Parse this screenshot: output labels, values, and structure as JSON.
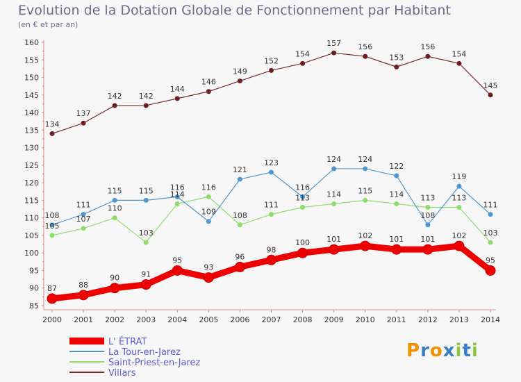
{
  "title": "Evolution de la Dotation Globale de Fonctionnement par Habitant",
  "subtitle": "(en € et par an)",
  "brand": {
    "text": "Proxiti",
    "letters": [
      {
        "ch": "P",
        "color": "#f29100"
      },
      {
        "ch": "r",
        "color": "#3a7fc4"
      },
      {
        "ch": "o",
        "color": "#f29100"
      },
      {
        "ch": "x",
        "color": "#3a7fc4"
      },
      {
        "ch": "i",
        "color": "#8cc63f"
      },
      {
        "ch": "t",
        "color": "#3a7fc4"
      },
      {
        "ch": "i",
        "color": "#8cc63f"
      }
    ]
  },
  "chart_data": {
    "type": "line",
    "x": [
      "2000",
      "2001",
      "2002",
      "2003",
      "2004",
      "2005",
      "2006",
      "2007",
      "2008",
      "2009",
      "2010",
      "2011",
      "2012",
      "2013",
      "2014"
    ],
    "ylim": [
      85,
      160
    ],
    "yticks": [
      85,
      90,
      95,
      100,
      105,
      110,
      115,
      120,
      125,
      130,
      135,
      140,
      145,
      150,
      155,
      160
    ],
    "grid": false,
    "legend_position": "bottom-left",
    "series": [
      {
        "name": "L' ÉTRAT",
        "color": "#ee0000",
        "width": 9,
        "marker": 7,
        "values": [
          87,
          88,
          90,
          91,
          95,
          93,
          96,
          98,
          100,
          101,
          102,
          101,
          101,
          102,
          95
        ]
      },
      {
        "name": "La Tour-en-Jarez",
        "color": "#4f97d0",
        "width": 1.2,
        "marker": 3.5,
        "values": [
          108,
          111,
          115,
          115,
          116,
          109,
          121,
          123,
          116,
          124,
          124,
          122,
          108,
          119,
          111
        ]
      },
      {
        "name": "Saint-Priest-en-Jarez",
        "color": "#8edc6a",
        "width": 1.2,
        "marker": 3.5,
        "values": [
          105,
          107,
          110,
          103,
          114,
          116,
          108,
          111,
          113,
          114,
          115,
          114,
          113,
          113,
          103
        ]
      },
      {
        "name": "Villars",
        "color": "#7a2b2b",
        "width": 1.2,
        "marker": 3.5,
        "values": [
          134,
          137,
          142,
          142,
          144,
          146,
          149,
          152,
          154,
          157,
          156,
          153,
          156,
          154,
          145
        ]
      }
    ]
  }
}
